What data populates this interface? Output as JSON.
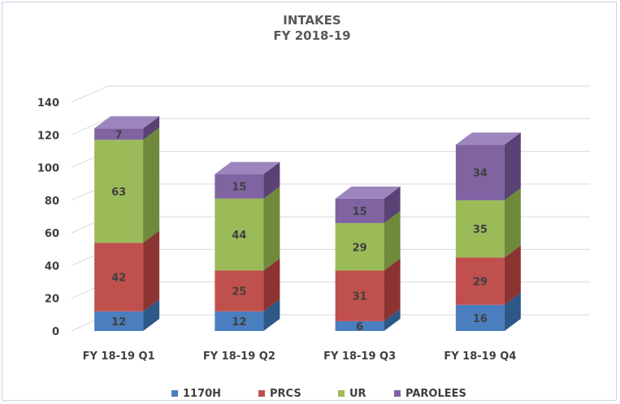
{
  "chart_data": {
    "type": "bar",
    "stacked": true,
    "style": "3d",
    "title": "INTAKES",
    "subtitle": "FY 2018-19",
    "categories": [
      "FY 18-19 Q1",
      "FY 18-19 Q2",
      "FY 18-19 Q3",
      "FY 18-19 Q4"
    ],
    "series": [
      {
        "name": "1170H",
        "values": [
          12,
          12,
          6,
          16
        ],
        "color": "#4a7ebf",
        "side": "#2e5888",
        "top": "#6c9bd4"
      },
      {
        "name": "PRCS",
        "values": [
          42,
          25,
          31,
          29
        ],
        "color": "#c0504d",
        "side": "#8c3432",
        "top": "#d47a78"
      },
      {
        "name": "UR",
        "values": [
          63,
          44,
          29,
          35
        ],
        "color": "#9bbb59",
        "side": "#6e8a3a",
        "top": "#b6d27c"
      },
      {
        "name": "PAROLEES",
        "values": [
          7,
          15,
          15,
          34
        ],
        "color": "#8064a2",
        "side": "#5a4275",
        "top": "#9d86bd"
      }
    ],
    "ylim": [
      0,
      140
    ],
    "yticks": [
      0,
      20,
      40,
      60,
      80,
      100,
      120,
      140
    ],
    "grid": true,
    "legend": "bottom"
  }
}
